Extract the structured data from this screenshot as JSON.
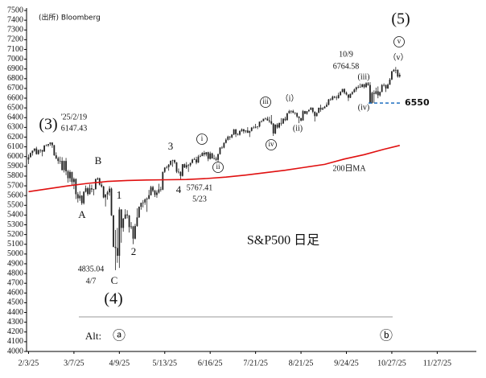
{
  "chart_data": {
    "type": "candlestick",
    "title": "S&P500 日足",
    "source": "(出所) Bloomberg",
    "color": "#222222",
    "xlim": [
      -1,
      226
    ],
    "xticks": [
      {
        "value": 0,
        "label": "2/3/25"
      },
      {
        "value": 23,
        "label": "3/7/25"
      },
      {
        "value": 46,
        "label": "4/9/25"
      },
      {
        "value": 69,
        "label": "5/13/25"
      },
      {
        "value": 92,
        "label": "6/16/25"
      },
      {
        "value": 115,
        "label": "7/21/25"
      },
      {
        "value": 138,
        "label": "8/21/25"
      },
      {
        "value": 161,
        "label": "9/24/25"
      },
      {
        "value": 184,
        "label": "10/27/25"
      },
      {
        "value": 207,
        "label": "11/27/25"
      }
    ],
    "ylim": [
      4000,
      7500
    ],
    "yticks": [
      4000,
      4100,
      4200,
      4300,
      4400,
      4500,
      4600,
      4700,
      4800,
      4900,
      5000,
      5100,
      5200,
      5300,
      5400,
      5500,
      5600,
      5700,
      5800,
      5900,
      6000,
      6100,
      6200,
      6300,
      6400,
      6500,
      6600,
      6700,
      6800,
      6900,
      7000,
      7100,
      7200,
      7300,
      7400,
      7500
    ],
    "x": [
      0,
      1,
      2,
      3,
      4,
      5,
      6,
      7,
      8,
      9,
      10,
      11,
      12,
      13,
      14,
      15,
      16,
      17,
      18,
      19,
      20,
      21,
      22,
      23,
      24,
      25,
      26,
      27,
      28,
      29,
      30,
      31,
      32,
      33,
      34,
      35,
      36,
      37,
      38,
      39,
      40,
      41,
      42,
      43,
      44,
      45,
      46,
      47,
      48,
      49,
      50,
      51,
      52,
      53,
      54,
      55,
      56,
      57,
      58,
      59,
      60,
      61,
      62,
      63,
      64,
      65,
      66,
      67,
      68,
      69,
      70,
      71,
      72,
      73,
      74,
      75,
      76,
      77,
      78,
      79,
      80,
      81,
      82,
      83,
      84,
      85,
      86,
      87,
      88,
      89,
      90,
      91,
      92,
      93,
      94,
      95,
      96,
      97,
      98,
      99,
      100,
      101,
      102,
      103,
      104,
      105,
      106,
      107,
      108,
      109,
      110,
      111,
      112,
      113,
      114,
      115,
      116,
      117,
      118,
      119,
      120,
      121,
      122,
      123,
      124,
      125,
      126,
      127,
      128,
      129,
      130,
      131,
      132,
      133,
      134,
      135,
      136,
      137,
      138,
      139,
      140,
      141,
      142,
      143,
      144,
      145,
      146,
      147,
      148,
      149,
      150,
      151,
      152,
      153,
      154,
      155,
      156,
      157,
      158,
      159,
      160,
      161,
      162,
      163,
      164,
      165,
      166,
      167,
      168,
      169,
      170,
      171,
      172,
      173,
      174,
      175,
      176,
      177,
      178,
      179,
      180,
      181,
      182,
      183,
      184,
      185,
      186,
      187,
      188
    ],
    "open": [
      5970,
      5994,
      6037,
      6061,
      6083,
      6026,
      6066,
      6068,
      6051,
      6115,
      6115,
      6129,
      6144,
      6117,
      6013,
      5983,
      5955,
      5956,
      5861,
      5955,
      5849,
      5778,
      5842,
      5739,
      5770,
      5614,
      5572,
      5599,
      5522,
      5639,
      5675,
      5615,
      5675,
      5663,
      5667,
      5768,
      5777,
      5712,
      5693,
      5581,
      5612,
      5633,
      5671,
      5397,
      5074,
      5062,
      4982,
      5457,
      5268,
      5363,
      5406,
      5397,
      5276,
      5283,
      5158,
      5288,
      5376,
      5485,
      5525,
      5529,
      5561,
      5569,
      5604,
      5687,
      5650,
      5607,
      5631,
      5664,
      5660,
      5844,
      5886,
      5892,
      5917,
      5958,
      5964,
      5940,
      5845,
      5842,
      5802,
      5922,
      5889,
      5912,
      5912,
      5936,
      5970,
      5971,
      5939,
      6000,
      6006,
      6038,
      6022,
      6045,
      5977,
      6033,
      5982,
      5981,
      5967,
      6025,
      6092,
      6092,
      6141,
      6173,
      6205,
      6198,
      6227,
      6279,
      6230,
      6225,
      6263,
      6280,
      6259,
      6268,
      6244,
      6264,
      6297,
      6297,
      6306,
      6309,
      6359,
      6363,
      6389,
      6390,
      6371,
      6362,
      6339,
      6238,
      6329,
      6299,
      6345,
      6340,
      6389,
      6374,
      6446,
      6467,
      6469,
      6450,
      6449,
      6411,
      6396,
      6370,
      6467,
      6439,
      6466,
      6481,
      6501,
      6460,
      6416,
      6448,
      6502,
      6482,
      6495,
      6512,
      6532,
      6587,
      6584,
      6615,
      6606,
      6601,
      6632,
      6664,
      6694,
      6656,
      6638,
      6604,
      6644,
      6661,
      6688,
      6711,
      6715,
      6715,
      6740,
      6714,
      6753,
      6735,
      6552,
      6654,
      6644,
      6671,
      6629,
      6664,
      6735,
      6735,
      6699,
      6738,
      6791,
      6875,
      6890,
      6890,
      6822
    ],
    "high": [
      6022,
      6042,
      6062,
      6084,
      6101,
      6073,
      6076,
      6070,
      6116,
      6127,
      6129,
      6147,
      6147,
      6120,
      6044,
      5999,
      6000,
      5994,
      5959,
      5986,
      5865,
      5861,
      5845,
      5785,
      5776,
      5636,
      5645,
      5605,
      5645,
      5703,
      5690,
      5715,
      5712,
      5670,
      5775,
      5786,
      5784,
      5732,
      5700,
      5615,
      5650,
      5696,
      5682,
      5400,
      5247,
      5268,
      5481,
      5460,
      5370,
      5460,
      5450,
      5400,
      5328,
      5290,
      5309,
      5469,
      5489,
      5528,
      5554,
      5571,
      5581,
      5658,
      5700,
      5700,
      5660,
      5654,
      5721,
      5691,
      5845,
      5892,
      5906,
      5924,
      5958,
      5968,
      5970,
      5945,
      5878,
      5850,
      5924,
      5929,
      5944,
      5924,
      5938,
      5978,
      5990,
      5999,
      6017,
      6022,
      6044,
      6059,
      6046,
      6050,
      6051,
      6040,
      6018,
      6000,
      6031,
      6097,
      6108,
      6146,
      6187,
      6215,
      6211,
      6227,
      6284,
      6285,
      6242,
      6269,
      6290,
      6285,
      6271,
      6302,
      6266,
      6304,
      6315,
      6336,
      6310,
      6360,
      6372,
      6389,
      6401,
      6410,
      6409,
      6427,
      6345,
      6330,
      6344,
      6350,
      6395,
      6395,
      6410,
      6446,
      6480,
      6476,
      6481,
      6456,
      6449,
      6415,
      6394,
      6478,
      6470,
      6467,
      6482,
      6508,
      6505,
      6465,
      6454,
      6502,
      6533,
      6508,
      6520,
      6556,
      6592,
      6600,
      6626,
      6623,
      6626,
      6656,
      6671,
      6696,
      6700,
      6668,
      6637,
      6648,
      6670,
      6699,
      6718,
      6733,
      6750,
      6749,
      6749,
      6763,
      6765,
      6764,
      6666,
      6680,
      6708,
      6720,
      6668,
      6744,
      6752,
      6740,
      6750,
      6807,
      6880,
      6899,
      6920,
      6895,
      6860
    ],
    "low": [
      5923,
      5990,
      6010,
      6050,
      6020,
      6020,
      6040,
      6003,
      6050,
      6107,
      6100,
      6111,
      6090,
      6008,
      5973,
      5925,
      5925,
      5858,
      5837,
      5810,
      5732,
      5742,
      5711,
      5666,
      5564,
      5529,
      5546,
      5504,
      5508,
      5631,
      5597,
      5611,
      5633,
      5603,
      5660,
      5758,
      5703,
      5681,
      5572,
      5488,
      5558,
      5598,
      5390,
      5069,
      4835,
      4910,
      4857,
      5116,
      5229,
      5359,
      5366,
      5221,
      5255,
      5101,
      5150,
      5280,
      5371,
      5455,
      5478,
      5505,
      5433,
      5560,
      5600,
      5634,
      5585,
      5578,
      5620,
      5640,
      5655,
      5833,
      5876,
      5855,
      5907,
      5895,
      5925,
      5830,
      5826,
      5768,
      5795,
      5882,
      5874,
      5843,
      5896,
      5929,
      5966,
      5921,
      5935,
      5994,
      6004,
      6002,
      6003,
      5953,
      5970,
      5978,
      5971,
      5955,
      5943,
      6020,
      6081,
      6085,
      6135,
      6165,
      6172,
      6188,
      6220,
      6201,
      6217,
      6215,
      6252,
      6237,
      6242,
      6243,
      6201,
      6258,
      6289,
      6290,
      6282,
      6300,
      6351,
      6363,
      6379,
      6368,
      6346,
      6327,
      6212,
      6230,
      6286,
      6290,
      6318,
      6335,
      6364,
      6370,
      6440,
      6441,
      6444,
      6430,
      6397,
      6343,
      6361,
      6376,
      6437,
      6431,
      6458,
      6477,
      6445,
      6360,
      6411,
      6448,
      6460,
      6479,
      6495,
      6508,
      6525,
      6573,
      6578,
      6598,
      6580,
      6595,
      6625,
      6658,
      6640,
      6628,
      6570,
      6600,
      6633,
      6657,
      6665,
      6700,
      6709,
      6710,
      6699,
      6705,
      6726,
      6551,
      6545,
      6550,
      6638,
      6599,
      6616,
      6660,
      6720,
      6663,
      6695,
      6735,
      6785,
      6870,
      6855,
      6810,
      6810
    ],
    "close": [
      5994,
      6037,
      6061,
      6083,
      6026,
      6066,
      6068,
      6051,
      6115,
      6115,
      6129,
      6144,
      6117,
      6013,
      5983,
      5955,
      5956,
      5861,
      5955,
      5849,
      5778,
      5842,
      5739,
      5770,
      5614,
      5572,
      5599,
      5522,
      5639,
      5675,
      5615,
      5675,
      5663,
      5667,
      5768,
      5777,
      5712,
      5693,
      5581,
      5612,
      5633,
      5671,
      5397,
      5074,
      5062,
      4982,
      5457,
      5268,
      5363,
      5406,
      5397,
      5276,
      5283,
      5158,
      5288,
      5376,
      5485,
      5525,
      5529,
      5561,
      5569,
      5604,
      5687,
      5650,
      5607,
      5631,
      5664,
      5660,
      5844,
      5886,
      5892,
      5917,
      5958,
      5964,
      5940,
      5845,
      5842,
      5802,
      5922,
      5889,
      5912,
      5912,
      5936,
      5970,
      5971,
      5939,
      6000,
      6006,
      6038,
      6022,
      6045,
      5977,
      6033,
      5982,
      5981,
      5967,
      6025,
      6092,
      6092,
      6141,
      6173,
      6205,
      6198,
      6227,
      6279,
      6230,
      6225,
      6263,
      6280,
      6259,
      6268,
      6244,
      6264,
      6297,
      6297,
      6306,
      6309,
      6359,
      6363,
      6389,
      6390,
      6371,
      6362,
      6339,
      6238,
      6329,
      6299,
      6345,
      6340,
      6389,
      6374,
      6446,
      6467,
      6469,
      6450,
      6449,
      6411,
      6396,
      6370,
      6467,
      6439,
      6466,
      6481,
      6501,
      6460,
      6416,
      6448,
      6502,
      6482,
      6495,
      6512,
      6532,
      6587,
      6584,
      6615,
      6606,
      6601,
      6632,
      6664,
      6694,
      6656,
      6638,
      6604,
      6644,
      6661,
      6688,
      6711,
      6715,
      6715,
      6740,
      6714,
      6753,
      6735,
      6552,
      6654,
      6644,
      6671,
      6629,
      6664,
      6735,
      6735,
      6699,
      6738,
      6791,
      6875,
      6890,
      6890,
      6822,
      6840
    ],
    "ma": {
      "name": "200日MA",
      "color": "#e01010",
      "x": [
        0,
        10,
        20,
        30,
        40,
        50,
        60,
        70,
        80,
        90,
        100,
        110,
        120,
        130,
        140,
        150,
        160,
        170,
        180,
        188
      ],
      "values": [
        5640,
        5670,
        5700,
        5725,
        5745,
        5755,
        5760,
        5762,
        5765,
        5775,
        5790,
        5810,
        5835,
        5860,
        5890,
        5920,
        5975,
        6020,
        6075,
        6115
      ]
    },
    "reference_line": {
      "value": 6550,
      "color": "#1f6fc0"
    },
    "annotations": [
      {
        "text": "(5)"
      },
      {
        "text": "v",
        "circled": true
      },
      {
        "text": "（v）"
      },
      {
        "text": "10/9"
      },
      {
        "text": "6764.58"
      },
      {
        "text": "(iii)"
      },
      {
        "text": "(iv)"
      },
      {
        "text": "iii",
        "circled": true
      },
      {
        "text": "（i）"
      },
      {
        "text": "(ii)"
      },
      {
        "text": "iv",
        "circled": true
      },
      {
        "text": "i",
        "circled": true
      },
      {
        "text": "ii",
        "circled": true
      },
      {
        "text": "3"
      },
      {
        "text": "4"
      },
      {
        "text": "5767.41"
      },
      {
        "text": "5/23"
      },
      {
        "text": "(3)"
      },
      {
        "text": "'25/2/19"
      },
      {
        "text": "6147.43"
      },
      {
        "text": "B"
      },
      {
        "text": "A"
      },
      {
        "text": "1"
      },
      {
        "text": "2"
      },
      {
        "text": "4835.04"
      },
      {
        "text": "4/7"
      },
      {
        "text": "C"
      },
      {
        "text": "(4)"
      },
      {
        "text": "Alt:"
      },
      {
        "text": "ⓐ"
      },
      {
        "text": "ⓑ"
      }
    ]
  }
}
